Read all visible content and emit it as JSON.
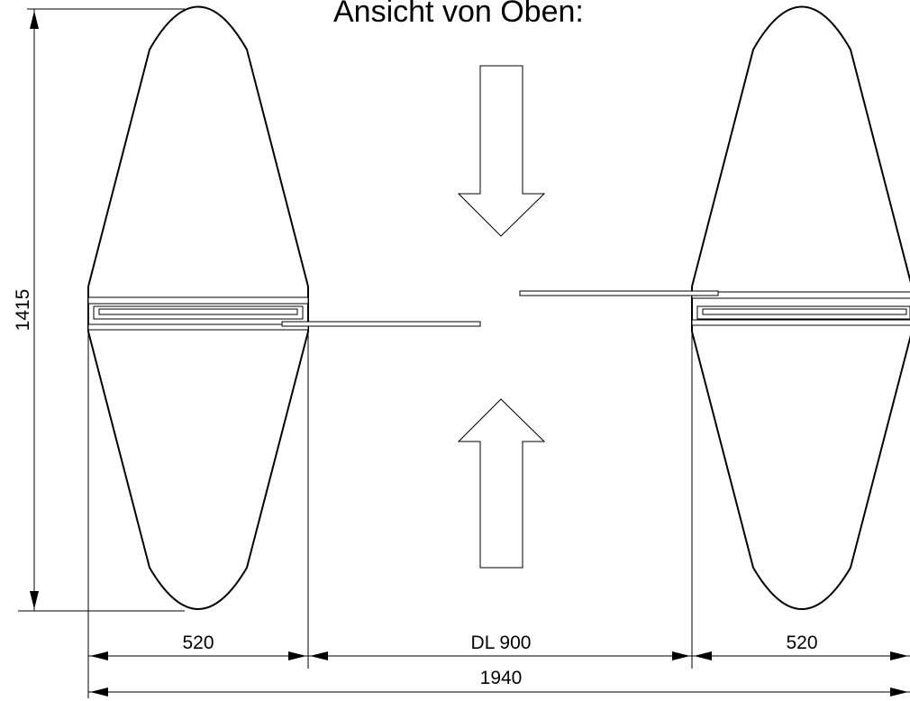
{
  "title": "Ansicht von Oben:",
  "dimensions": {
    "height": "1415",
    "left_width": "520",
    "passage_width": "DL 900",
    "right_width": "520",
    "total_width": "1940"
  }
}
